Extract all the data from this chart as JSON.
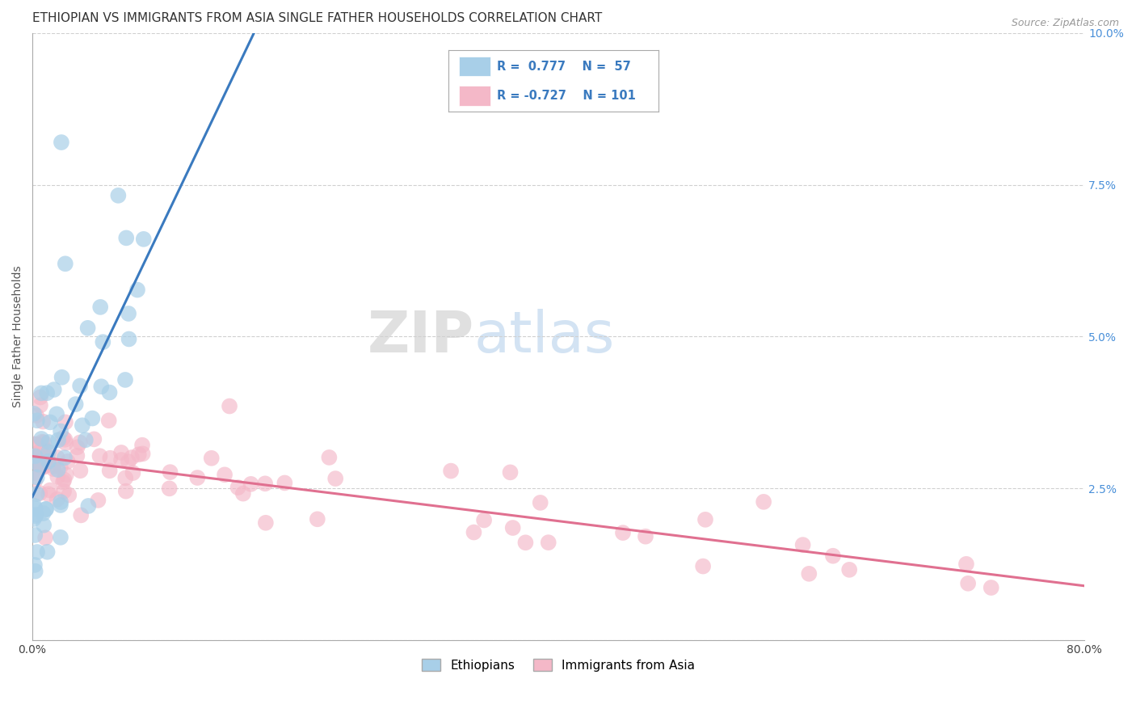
{
  "title": "ETHIOPIAN VS IMMIGRANTS FROM ASIA SINGLE FATHER HOUSEHOLDS CORRELATION CHART",
  "source_text": "Source: ZipAtlas.com",
  "ylabel": "Single Father Households",
  "watermark_zip": "ZIP",
  "watermark_atlas": "atlas",
  "xlim": [
    0.0,
    0.8
  ],
  "ylim": [
    0.0,
    0.1
  ],
  "blue_R": 0.777,
  "blue_N": 57,
  "pink_R": -0.727,
  "pink_N": 101,
  "blue_color": "#a8cfe8",
  "pink_color": "#f4b8c8",
  "blue_line_color": "#3a7abf",
  "pink_line_color": "#e07090",
  "legend_text_color": "#3a7abf",
  "legend_label_blue": "Ethiopians",
  "legend_label_pink": "Immigrants from Asia",
  "title_fontsize": 11,
  "axis_label_fontsize": 10,
  "tick_fontsize": 10,
  "legend_fontsize": 11,
  "background_color": "#ffffff",
  "grid_color": "#d0d0d0",
  "grid_style": "--"
}
